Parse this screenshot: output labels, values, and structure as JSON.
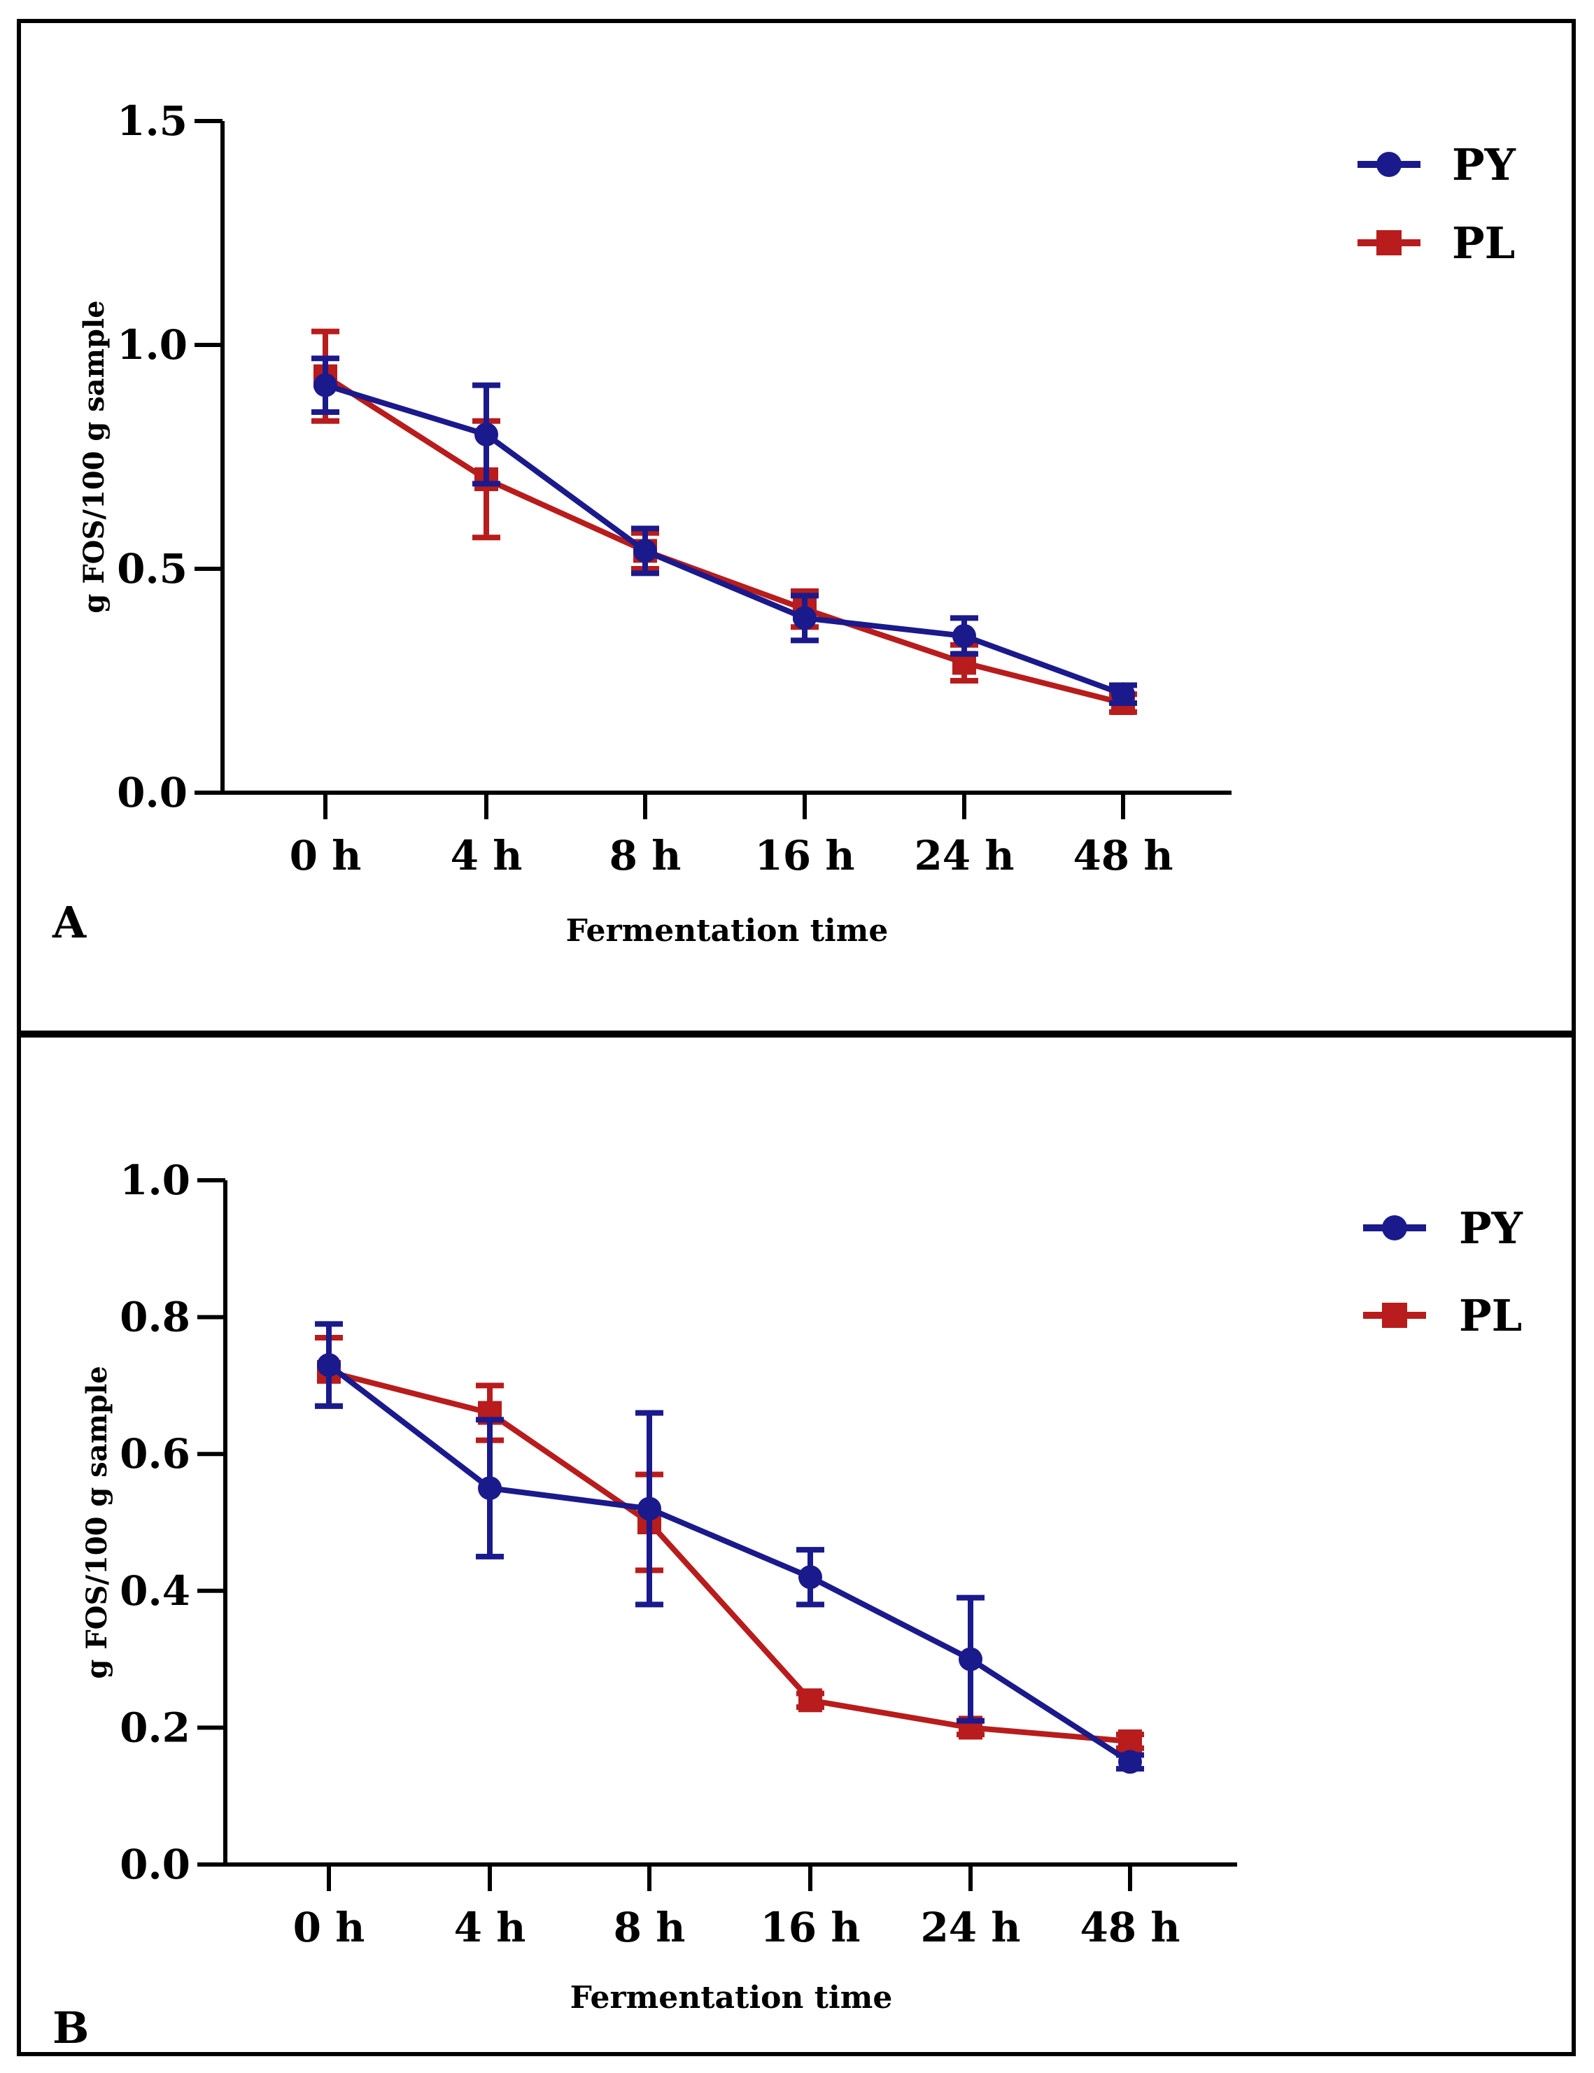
{
  "chart_data": [
    {
      "panel": "A",
      "type": "line",
      "xlabel": "Fermentation time",
      "ylabel": "g FOS/100 g sample",
      "categories": [
        "0 h",
        "4 h",
        "8 h",
        "16 h",
        "24 h",
        "48 h"
      ],
      "ylim": [
        0,
        1.5
      ],
      "yticks": [
        "0.0",
        "0.5",
        "1.0",
        "1.5"
      ],
      "ytick_values": [
        0,
        0.5,
        1.0,
        1.5
      ],
      "series": [
        {
          "name": "PY",
          "color": "#1a1a8c",
          "marker": "circle",
          "values": [
            0.91,
            0.8,
            0.54,
            0.39,
            0.35,
            0.22
          ],
          "errors": [
            0.06,
            0.11,
            0.05,
            0.05,
            0.04,
            0.02
          ]
        },
        {
          "name": "PL",
          "color": "#b81c1c",
          "marker": "square",
          "values": [
            0.93,
            0.7,
            0.54,
            0.41,
            0.29,
            0.2
          ],
          "errors": [
            0.1,
            0.13,
            0.04,
            0.04,
            0.04,
            0.02
          ]
        }
      ]
    },
    {
      "panel": "B",
      "type": "line",
      "xlabel": "Fermentation time",
      "ylabel": "g FOS/100 g sample",
      "categories": [
        "0 h",
        "4 h",
        "8 h",
        "16 h",
        "24 h",
        "48 h"
      ],
      "ylim": [
        0,
        1.0
      ],
      "yticks": [
        "0.0",
        "0.2",
        "0.4",
        "0.6",
        "0.8",
        "1.0"
      ],
      "ytick_values": [
        0,
        0.2,
        0.4,
        0.6,
        0.8,
        1.0
      ],
      "series": [
        {
          "name": "PY",
          "color": "#1a1a8c",
          "marker": "circle",
          "values": [
            0.73,
            0.55,
            0.52,
            0.42,
            0.3,
            0.15
          ],
          "errors": [
            0.06,
            0.1,
            0.14,
            0.04,
            0.09,
            0.01
          ]
        },
        {
          "name": "PL",
          "color": "#b81c1c",
          "marker": "square",
          "values": [
            0.72,
            0.66,
            0.5,
            0.24,
            0.2,
            0.18
          ],
          "errors": [
            0.05,
            0.04,
            0.07,
            0.01,
            0.01,
            0.01
          ]
        }
      ]
    }
  ]
}
